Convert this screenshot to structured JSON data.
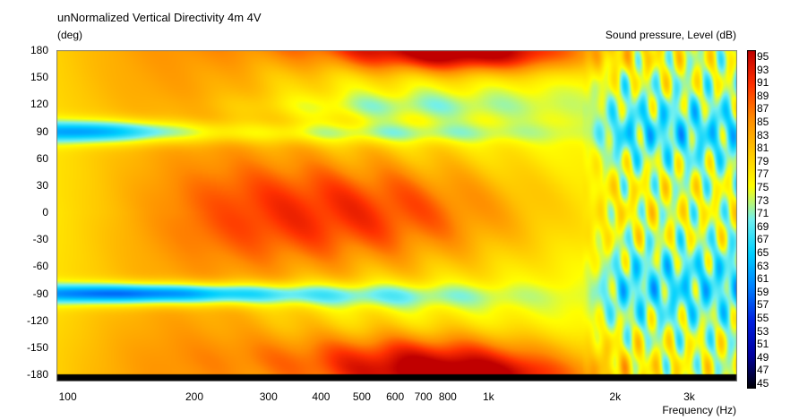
{
  "header": {
    "title": "unNormalized Vertical Directivity 4m 4V",
    "y_unit": "(deg)",
    "legend_title": "Sound pressure, Level  (dB)",
    "x_label": "Frequency  (Hz)"
  },
  "chart_data": {
    "type": "heatmap",
    "title": "unNormalized Vertical Directivity 4m 4V",
    "xlabel": "Frequency  (Hz)",
    "ylabel": "(deg)",
    "colorbar_label": "Sound pressure, Level  (dB)",
    "x_scale": "log",
    "xlim": [
      94,
      3900
    ],
    "ylim": [
      -180,
      180
    ],
    "x_ticks": [
      {
        "value": 100,
        "label": "100"
      },
      {
        "value": 200,
        "label": "200"
      },
      {
        "value": 300,
        "label": "300"
      },
      {
        "value": 400,
        "label": "400"
      },
      {
        "value": 500,
        "label": "500"
      },
      {
        "value": 600,
        "label": "600"
      },
      {
        "value": 700,
        "label": "700"
      },
      {
        "value": 800,
        "label": "800"
      },
      {
        "value": 1000,
        "label": "1k"
      },
      {
        "value": 2000,
        "label": "2k"
      },
      {
        "value": 3000,
        "label": "3k"
      }
    ],
    "y_ticks": [
      180,
      150,
      120,
      90,
      60,
      30,
      0,
      -30,
      -60,
      -90,
      -120,
      -150,
      -180
    ],
    "colorbar_ticks": [
      95,
      93,
      91,
      89,
      87,
      85,
      83,
      81,
      79,
      77,
      75,
      73,
      71,
      69,
      67,
      65,
      63,
      61,
      59,
      57,
      55,
      53,
      51,
      49,
      47,
      45
    ],
    "zlim": [
      45,
      96
    ],
    "colormap": [
      "#000000",
      "#0000a0",
      "#0020e0",
      "#0080ff",
      "#00d0ff",
      "#70f0f0",
      "#ffff00",
      "#ffc800",
      "#ff8c00",
      "#ff3000",
      "#c00000"
    ],
    "grid": false,
    "legend_placement": "right",
    "bands": [
      {
        "feature": "on-axis lobe",
        "angle_deg": 0,
        "peak_db": 89,
        "freq_range_hz": [
          250,
          1700
        ]
      },
      {
        "feature": "rear lobe",
        "angle_deg": 180,
        "peak_db": 90,
        "freq_range_hz": [
          400,
          1600
        ]
      },
      {
        "feature": "rear-lower lobe",
        "angle_deg": -160,
        "peak_db": 89,
        "freq_range_hz": [
          300,
          1700
        ]
      },
      {
        "feature": "null",
        "angle_deg": 90,
        "min_db": 57,
        "freq_range_hz": [
          94,
          170
        ]
      },
      {
        "feature": "null",
        "angle_deg": -90,
        "min_db": 52,
        "freq_range_hz": [
          94,
          280
        ]
      }
    ]
  }
}
